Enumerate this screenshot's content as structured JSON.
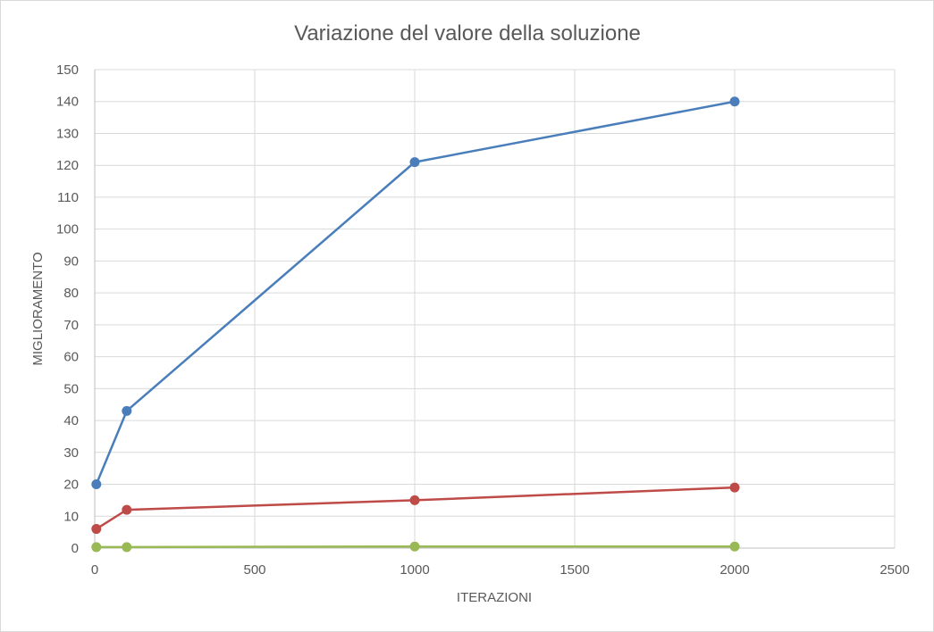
{
  "chart_data": {
    "type": "line",
    "title": "Variazione del valore della soluzione",
    "xlabel": "ITERAZIONI",
    "ylabel": "MIGLIORAMENTO",
    "xlim": [
      0,
      2500
    ],
    "ylim": [
      0,
      150
    ],
    "xticks": [
      0,
      500,
      1000,
      1500,
      2000,
      2500
    ],
    "yticks": [
      0,
      10,
      20,
      30,
      40,
      50,
      60,
      70,
      80,
      90,
      100,
      110,
      120,
      130,
      140,
      150
    ],
    "grid": true,
    "x": [
      5,
      100,
      1000,
      2000
    ],
    "series": [
      {
        "color": "#4a7ebb",
        "values": [
          20,
          43,
          121,
          140
        ]
      },
      {
        "color": "#be4b48",
        "values": [
          6,
          12,
          15,
          19
        ]
      },
      {
        "color": "#98b954",
        "values": [
          0.3,
          0.3,
          0.5,
          0.5
        ]
      }
    ]
  }
}
